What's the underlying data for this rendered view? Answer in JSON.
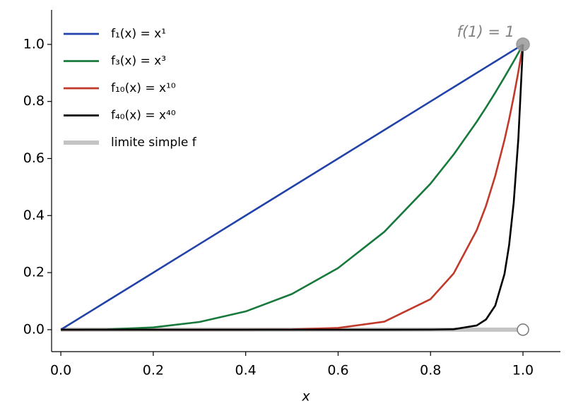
{
  "chart_data": {
    "type": "line",
    "x_label": "x",
    "x": [
      0,
      0.1,
      0.2,
      0.3,
      0.4,
      0.5,
      0.6,
      0.7,
      0.8,
      0.85,
      0.9,
      0.92,
      0.94,
      0.96,
      0.97,
      0.98,
      0.99,
      1
    ],
    "series": [
      {
        "name": "limite simple f",
        "color": "#c4c4c4",
        "x": [
          0,
          1
        ],
        "values": [
          0,
          0
        ]
      },
      {
        "name": "f₁(x) = x¹",
        "color": "#2142a8",
        "values": [
          0,
          0.1,
          0.2,
          0.3,
          0.4,
          0.5,
          0.6,
          0.7,
          0.8,
          0.85,
          0.9,
          0.92,
          0.94,
          0.96,
          0.97,
          0.98,
          0.99,
          1
        ]
      },
      {
        "name": "f₃(x) = x³",
        "color": "#17793b",
        "values": [
          0,
          0.001,
          0.008,
          0.027,
          0.064,
          0.125,
          0.216,
          0.343,
          0.512,
          0.614,
          0.729,
          0.779,
          0.831,
          0.885,
          0.913,
          0.941,
          0.97,
          1
        ]
      },
      {
        "name": "f₁₀(x) = x¹⁰",
        "color": "#c0392b",
        "values": [
          0,
          0,
          0,
          0,
          0.0001,
          0.001,
          0.006,
          0.028,
          0.107,
          0.197,
          0.349,
          0.434,
          0.539,
          0.665,
          0.737,
          0.817,
          0.904,
          1
        ]
      },
      {
        "name": "f₄₀(x) = x⁴⁰",
        "color": "#000000",
        "values": [
          0,
          0,
          0,
          0,
          0,
          0,
          0,
          0,
          0.0001,
          0.0015,
          0.0148,
          0.0356,
          0.0842,
          0.195,
          0.296,
          0.446,
          0.669,
          1
        ]
      }
    ],
    "legend_order": [
      1,
      2,
      3,
      4,
      0
    ],
    "markers": [
      {
        "x": 1,
        "y": 1,
        "filled": true,
        "color": "#999999"
      },
      {
        "x": 1,
        "y": 0,
        "filled": false,
        "color": "#777777"
      }
    ],
    "annotation": "f(1) = 1",
    "xlim": [
      -0.02,
      1.081
    ],
    "ylim": [
      -0.077,
      1.121
    ],
    "xticks": [
      {
        "value": 0,
        "label": "0.0"
      },
      0.2,
      0.4,
      0.6,
      0.8,
      {
        "value": 1,
        "label": "1.0"
      }
    ],
    "yticks": [
      {
        "value": 0,
        "label": "0.0"
      },
      0.2,
      0.4,
      0.6,
      0.8,
      {
        "value": 1,
        "label": "1.0"
      }
    ],
    "grid": false,
    "legend": "upper left"
  }
}
